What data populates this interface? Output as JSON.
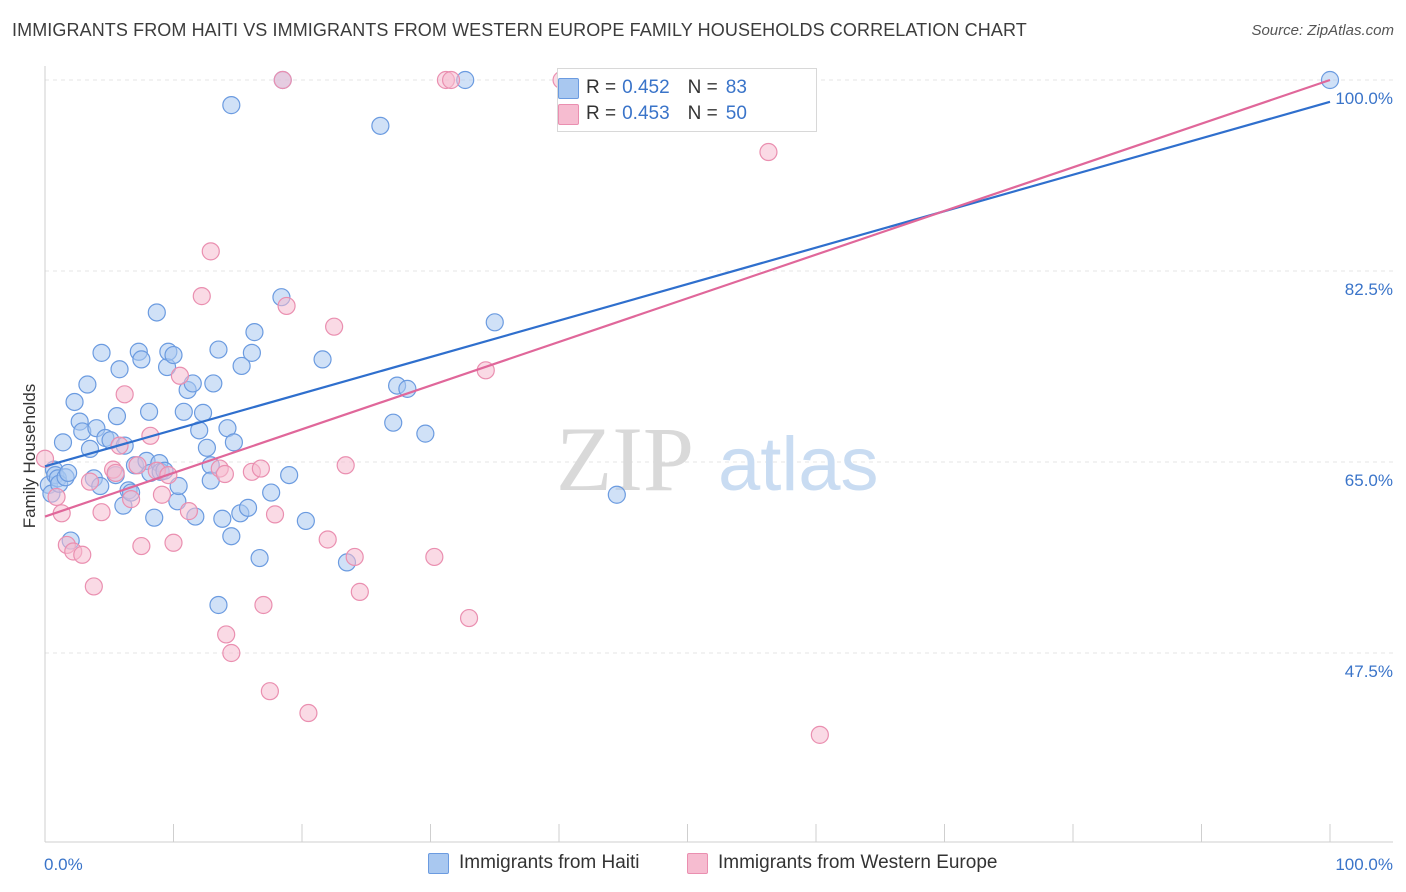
{
  "header": {
    "title": "IMMIGRANTS FROM HAITI VS IMMIGRANTS FROM WESTERN EUROPE FAMILY HOUSEHOLDS CORRELATION CHART",
    "source": "Source: ZipAtlas.com"
  },
  "watermark": {
    "zip": "ZIP",
    "atlas": "atlas"
  },
  "legend_top": {
    "rows": [
      {
        "r_label": "R =",
        "r_value": "0.452",
        "n_label": "N =",
        "n_value": "83"
      },
      {
        "r_label": "R =",
        "r_value": "0.453",
        "n_label": "N =",
        "n_value": "50"
      }
    ]
  },
  "legend_bottom": {
    "items": [
      "Immigrants from Haiti",
      "Immigrants from Western Europe"
    ]
  },
  "colors": {
    "blue_fill": "#a9c8f0",
    "blue_stroke": "#6b9be0",
    "blue_line": "#2f6fcd",
    "pink_fill": "#f6bcd0",
    "pink_stroke": "#ea8fb0",
    "pink_line": "#e0679a",
    "tick_label": "#3a74c9",
    "grid": "#e4e4e4"
  },
  "chart_data": {
    "type": "scatter",
    "title": "IMMIGRANTS FROM HAITI VS IMMIGRANTS FROM WESTERN EUROPE FAMILY HOUSEHOLDS CORRELATION CHART",
    "xlabel": "",
    "ylabel": "Family Households",
    "xlim": [
      0,
      100
    ],
    "ylim": [
      29.5,
      102
    ],
    "x_tick_labels": [
      "0.0%",
      "100.0%"
    ],
    "y_ticks": [
      47.5,
      65.0,
      82.5,
      100.0
    ],
    "y_tick_labels": [
      "47.5%",
      "65.0%",
      "82.5%",
      "100.0%"
    ],
    "series": [
      {
        "name": "Immigrants from Haiti",
        "r": 0.452,
        "n": 83,
        "trend": {
          "x0": 0,
          "y0": 64.6,
          "x1": 100,
          "y1": 98.0
        },
        "points": [
          [
            0.3,
            62.9
          ],
          [
            0.5,
            62.1
          ],
          [
            0.7,
            64.3
          ],
          [
            0.8,
            63.8
          ],
          [
            1.0,
            63.5
          ],
          [
            1.1,
            63.0
          ],
          [
            1.4,
            66.8
          ],
          [
            1.6,
            63.6
          ],
          [
            1.8,
            64.0
          ],
          [
            2.0,
            57.8
          ],
          [
            2.3,
            70.5
          ],
          [
            2.7,
            68.7
          ],
          [
            2.9,
            67.8
          ],
          [
            3.3,
            72.1
          ],
          [
            3.5,
            66.2
          ],
          [
            3.8,
            63.5
          ],
          [
            4.0,
            68.1
          ],
          [
            4.3,
            62.8
          ],
          [
            4.4,
            75.0
          ],
          [
            4.7,
            67.2
          ],
          [
            5.1,
            67.0
          ],
          [
            5.5,
            63.8
          ],
          [
            5.6,
            69.2
          ],
          [
            5.8,
            73.5
          ],
          [
            6.2,
            66.5
          ],
          [
            6.1,
            61.0
          ],
          [
            6.5,
            62.4
          ],
          [
            6.7,
            62.2
          ],
          [
            7.0,
            64.7
          ],
          [
            7.3,
            75.1
          ],
          [
            7.5,
            74.4
          ],
          [
            7.9,
            65.1
          ],
          [
            8.1,
            69.6
          ],
          [
            8.2,
            64.0
          ],
          [
            8.5,
            59.9
          ],
          [
            8.7,
            78.7
          ],
          [
            8.9,
            64.9
          ],
          [
            9.0,
            64.1
          ],
          [
            9.3,
            64.2
          ],
          [
            9.5,
            73.7
          ],
          [
            9.6,
            75.1
          ],
          [
            10.0,
            74.8
          ],
          [
            10.3,
            61.4
          ],
          [
            10.4,
            62.8
          ],
          [
            10.8,
            69.6
          ],
          [
            11.1,
            71.6
          ],
          [
            11.5,
            72.2
          ],
          [
            11.7,
            60.0
          ],
          [
            12.0,
            67.9
          ],
          [
            12.3,
            69.5
          ],
          [
            12.6,
            66.3
          ],
          [
            12.9,
            64.7
          ],
          [
            12.9,
            63.3
          ],
          [
            13.1,
            72.2
          ],
          [
            13.5,
            51.9
          ],
          [
            13.5,
            75.3
          ],
          [
            13.8,
            59.8
          ],
          [
            14.2,
            68.1
          ],
          [
            14.5,
            58.2
          ],
          [
            14.7,
            66.8
          ],
          [
            15.2,
            60.3
          ],
          [
            15.3,
            73.8
          ],
          [
            15.8,
            60.8
          ],
          [
            16.3,
            76.9
          ],
          [
            16.1,
            75.0
          ],
          [
            16.7,
            56.2
          ],
          [
            17.6,
            62.2
          ],
          [
            18.4,
            80.1
          ],
          [
            18.5,
            100.0
          ],
          [
            19.0,
            63.8
          ],
          [
            20.3,
            59.6
          ],
          [
            21.6,
            74.4
          ],
          [
            14.5,
            97.7
          ],
          [
            23.5,
            55.8
          ],
          [
            26.1,
            95.8
          ],
          [
            27.4,
            72.0
          ],
          [
            27.1,
            68.6
          ],
          [
            28.2,
            71.7
          ],
          [
            29.6,
            67.6
          ],
          [
            32.7,
            100.0
          ],
          [
            35.0,
            77.8
          ],
          [
            44.5,
            62.0
          ],
          [
            100.0,
            100.0
          ]
        ]
      },
      {
        "name": "Immigrants from Western Europe",
        "r": 0.453,
        "n": 50,
        "trend": {
          "x0": 0,
          "y0": 60.0,
          "x1": 100,
          "y1": 100.0
        },
        "points": [
          [
            0.0,
            65.3
          ],
          [
            0.9,
            61.8
          ],
          [
            1.3,
            60.3
          ],
          [
            1.7,
            57.4
          ],
          [
            2.2,
            56.8
          ],
          [
            2.9,
            56.5
          ],
          [
            3.5,
            63.2
          ],
          [
            3.8,
            53.6
          ],
          [
            4.4,
            60.4
          ],
          [
            5.3,
            64.3
          ],
          [
            5.5,
            64.0
          ],
          [
            5.8,
            66.5
          ],
          [
            6.2,
            71.2
          ],
          [
            6.7,
            61.6
          ],
          [
            7.2,
            64.7
          ],
          [
            7.5,
            57.3
          ],
          [
            8.2,
            67.4
          ],
          [
            8.7,
            64.2
          ],
          [
            9.1,
            62.0
          ],
          [
            9.6,
            63.8
          ],
          [
            10.0,
            57.6
          ],
          [
            10.5,
            72.9
          ],
          [
            11.2,
            60.5
          ],
          [
            12.2,
            80.2
          ],
          [
            12.9,
            84.3
          ],
          [
            13.6,
            64.4
          ],
          [
            14.0,
            63.9
          ],
          [
            14.1,
            49.2
          ],
          [
            14.5,
            47.5
          ],
          [
            16.1,
            64.1
          ],
          [
            16.8,
            64.4
          ],
          [
            17.0,
            51.9
          ],
          [
            17.5,
            44.0
          ],
          [
            17.9,
            60.2
          ],
          [
            18.5,
            100.0
          ],
          [
            18.8,
            79.3
          ],
          [
            20.5,
            42.0
          ],
          [
            22.0,
            57.9
          ],
          [
            22.5,
            77.4
          ],
          [
            23.4,
            64.7
          ],
          [
            24.1,
            56.3
          ],
          [
            24.5,
            53.1
          ],
          [
            30.3,
            56.3
          ],
          [
            31.2,
            100.0
          ],
          [
            31.6,
            100.0
          ],
          [
            33.0,
            50.7
          ],
          [
            34.3,
            73.4
          ],
          [
            40.2,
            100.0
          ],
          [
            56.3,
            93.4
          ],
          [
            60.3,
            40.0
          ]
        ]
      }
    ]
  }
}
